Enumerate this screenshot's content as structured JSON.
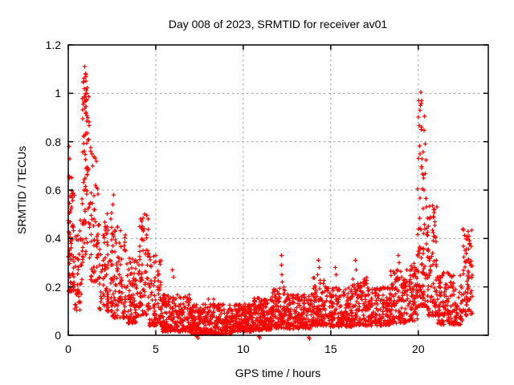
{
  "chart_data": {
    "type": "scatter",
    "title": "Day 008 of 2023, SRMTID for receiver av01",
    "xlabel": "GPS time / hours",
    "ylabel": "SRMTID / TECUs",
    "xlim": [
      0,
      24
    ],
    "ylim": [
      0,
      1.2
    ],
    "grid": true,
    "grid_color": "#a0a0a0",
    "border_color": "#000000",
    "background_color": "#ffffff",
    "legend": "none",
    "x_ticks": [
      {
        "value": 0,
        "label": "0"
      },
      {
        "value": 5,
        "label": "5"
      },
      {
        "value": 10,
        "label": "10"
      },
      {
        "value": 15,
        "label": "15"
      },
      {
        "value": 20,
        "label": "20"
      }
    ],
    "y_ticks": [
      {
        "value": 0,
        "label": "0"
      },
      {
        "value": 0.2,
        "label": "0.2"
      },
      {
        "value": 0.4,
        "label": "0.4"
      },
      {
        "value": 0.6,
        "label": "0.6"
      },
      {
        "value": 0.8,
        "label": "0.8"
      },
      {
        "value": 1.0,
        "label": "1"
      },
      {
        "value": 1.2,
        "label": "1.2"
      }
    ],
    "marker": {
      "shape": "plus",
      "color": "#ff0000",
      "half_size": 2.6,
      "stroke_width": 1.3
    },
    "series": [
      {
        "name": "SRMTID",
        "representation": "density_segments",
        "seed": 42,
        "segments": [
          {
            "x0": 0.0,
            "x1": 0.35,
            "n": 70,
            "ymin": 0.18,
            "ymax": 0.66,
            "p": 1.6
          },
          {
            "x0": 0.35,
            "x1": 0.78,
            "n": 40,
            "ymin": 0.1,
            "ymax": 0.48,
            "p": 1.5
          },
          {
            "x0": 0.78,
            "x1": 1.2,
            "n": 80,
            "ymin": 0.3,
            "ymax": 1.1,
            "p": 1.2
          },
          {
            "x0": 1.2,
            "x1": 1.75,
            "n": 60,
            "ymin": 0.22,
            "ymax": 0.78,
            "p": 1.6
          },
          {
            "x0": 1.75,
            "x1": 2.5,
            "n": 90,
            "ymin": 0.1,
            "ymax": 0.52,
            "p": 1.7
          },
          {
            "x0": 2.5,
            "x1": 3.3,
            "n": 100,
            "ymin": 0.07,
            "ymax": 0.45,
            "p": 1.9
          },
          {
            "x0": 3.3,
            "x1": 3.95,
            "n": 90,
            "ymin": 0.05,
            "ymax": 0.32,
            "p": 1.8
          },
          {
            "x0": 3.95,
            "x1": 4.6,
            "n": 80,
            "ymin": 0.08,
            "ymax": 0.5,
            "p": 1.5
          },
          {
            "x0": 4.6,
            "x1": 5.3,
            "n": 90,
            "ymin": 0.04,
            "ymax": 0.33,
            "p": 2.0
          },
          {
            "x0": 5.3,
            "x1": 7.0,
            "n": 220,
            "ymin": 0.015,
            "ymax": 0.17,
            "p": 1.6
          },
          {
            "x0": 7.0,
            "x1": 9.3,
            "n": 300,
            "ymin": 0.005,
            "ymax": 0.13,
            "p": 1.6
          },
          {
            "x0": 9.3,
            "x1": 10.6,
            "n": 200,
            "ymin": 0.015,
            "ymax": 0.13,
            "p": 1.4
          },
          {
            "x0": 10.6,
            "x1": 11.6,
            "n": 150,
            "ymin": 0.02,
            "ymax": 0.16,
            "p": 1.5
          },
          {
            "x0": 11.6,
            "x1": 12.4,
            "n": 110,
            "ymin": 0.03,
            "ymax": 0.2,
            "p": 1.6
          },
          {
            "x0": 12.4,
            "x1": 13.9,
            "n": 180,
            "ymin": 0.025,
            "ymax": 0.17,
            "p": 1.6
          },
          {
            "x0": 13.9,
            "x1": 14.7,
            "n": 110,
            "ymin": 0.04,
            "ymax": 0.24,
            "p": 1.5
          },
          {
            "x0": 14.7,
            "x1": 16.2,
            "n": 180,
            "ymin": 0.035,
            "ymax": 0.2,
            "p": 1.6
          },
          {
            "x0": 16.2,
            "x1": 17.1,
            "n": 110,
            "ymin": 0.04,
            "ymax": 0.24,
            "p": 1.5
          },
          {
            "x0": 17.1,
            "x1": 18.4,
            "n": 150,
            "ymin": 0.04,
            "ymax": 0.2,
            "p": 1.5
          },
          {
            "x0": 18.4,
            "x1": 19.3,
            "n": 110,
            "ymin": 0.05,
            "ymax": 0.27,
            "p": 1.4
          },
          {
            "x0": 19.3,
            "x1": 19.95,
            "n": 80,
            "ymin": 0.06,
            "ymax": 0.3,
            "p": 1.3
          },
          {
            "x0": 19.95,
            "x1": 20.45,
            "n": 90,
            "ymin": 0.12,
            "ymax": 1.0,
            "p": 2.2
          },
          {
            "x0": 20.45,
            "x1": 21.1,
            "n": 90,
            "ymin": 0.08,
            "ymax": 0.55,
            "p": 1.8
          },
          {
            "x0": 21.1,
            "x1": 22.55,
            "n": 170,
            "ymin": 0.045,
            "ymax": 0.26,
            "p": 1.7
          },
          {
            "x0": 22.55,
            "x1": 23.1,
            "n": 70,
            "ymin": 0.08,
            "ymax": 0.44,
            "p": 1.2
          }
        ],
        "outliers": [
          [
            0.95,
            1.11
          ],
          [
            0.98,
            1.08
          ],
          [
            1.0,
            1.05
          ],
          [
            0.92,
            1.02
          ],
          [
            1.05,
            1.0
          ],
          [
            0.05,
            0.78
          ],
          [
            0.1,
            0.73
          ],
          [
            0.08,
            0.65
          ],
          [
            1.35,
            0.75
          ],
          [
            1.4,
            0.7
          ],
          [
            2.6,
            0.58
          ],
          [
            2.55,
            0.54
          ],
          [
            2.1,
            0.45
          ],
          [
            4.2,
            0.47
          ],
          [
            4.25,
            0.44
          ],
          [
            5.95,
            0.27
          ],
          [
            6.0,
            0.24
          ],
          [
            8.0,
            0.15
          ],
          [
            8.3,
            0.15
          ],
          [
            7.35,
            -0.005
          ],
          [
            7.4,
            -0.012
          ],
          [
            10.9,
            -0.005
          ],
          [
            10.95,
            -0.012
          ],
          [
            13.75,
            -0.008
          ],
          [
            13.8,
            -0.015
          ],
          [
            12.18,
            0.33
          ],
          [
            12.18,
            0.29
          ],
          [
            12.2,
            0.25
          ],
          [
            12.22,
            0.22
          ],
          [
            14.3,
            0.31
          ],
          [
            14.35,
            0.28
          ],
          [
            14.25,
            0.25
          ],
          [
            15.25,
            0.28
          ],
          [
            15.3,
            0.25
          ],
          [
            16.4,
            0.31
          ],
          [
            16.45,
            0.27
          ],
          [
            18.85,
            0.33
          ],
          [
            18.9,
            0.3
          ],
          [
            18.8,
            0.27
          ],
          [
            20.15,
            1.005
          ],
          [
            20.18,
            0.97
          ],
          [
            20.12,
            0.95
          ],
          [
            20.2,
            0.86
          ],
          [
            20.16,
            0.85
          ],
          [
            20.1,
            0.75
          ],
          [
            20.22,
            0.73
          ],
          [
            20.3,
            0.65
          ],
          [
            22.85,
            0.43
          ],
          [
            22.9,
            0.41
          ],
          [
            22.95,
            0.38
          ]
        ]
      }
    ]
  }
}
